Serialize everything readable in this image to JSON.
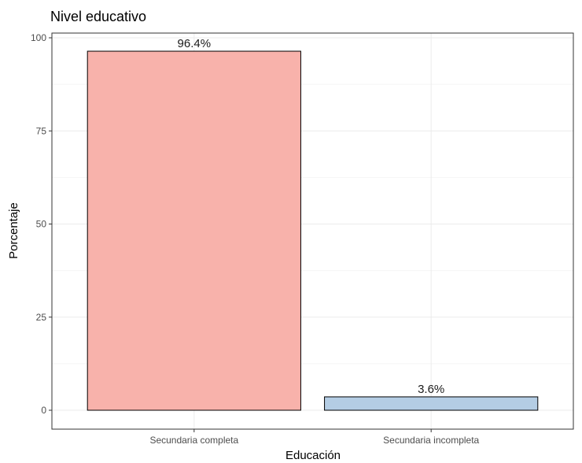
{
  "chart_data": {
    "type": "bar",
    "title": "Nivel educativo",
    "xlabel": "Educación",
    "ylabel": "Porcentaje",
    "categories": [
      "Secundaria completa",
      "Secundaria incompleta"
    ],
    "values": [
      96.4,
      3.6
    ],
    "data_labels": [
      "96.4%",
      "3.6%"
    ],
    "ylim": [
      0,
      100
    ],
    "yticks": [
      0,
      25,
      50,
      75,
      100
    ],
    "grid": true,
    "colors": [
      "#f8b2ab",
      "#b4cde4"
    ],
    "bar_outline": "#000000",
    "panel_border": "#333333",
    "grid_major": "#ebebeb",
    "grid_minor": "#f5f5f5"
  }
}
